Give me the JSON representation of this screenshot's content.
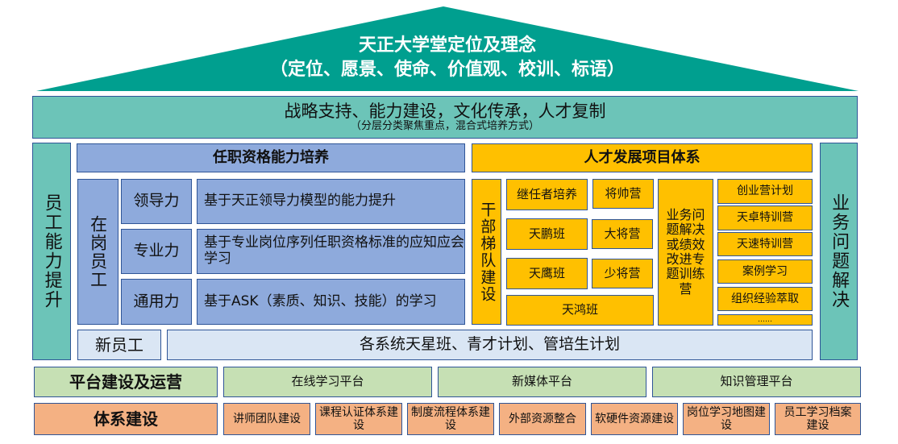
{
  "roof": {
    "title": "天正大学堂定位及理念",
    "subtitle": "（定位、愿景、使命、价值观、校训、标语）"
  },
  "band": {
    "title": "战略支持、能力建设，文化传承，人才复制",
    "subtitle": "（分层分类聚焦重点，混合式培养方式）"
  },
  "left_pillar": "员工能力提升",
  "right_pillar": "业务问题解决",
  "qualification": {
    "header": "任职资格能力培养",
    "onjob": "在岗员工",
    "rows": [
      {
        "label": "领导力",
        "desc": "基于天正领导力模型的能力提升"
      },
      {
        "label": "专业力",
        "desc": "基于专业岗位序列任职资格标准的应知应会学习"
      },
      {
        "label": "通用力",
        "desc": "基于ASK（素质、知识、技能）的学习"
      }
    ]
  },
  "new_staff": {
    "label": "新员工",
    "desc": "各系统天星班、青才计划、管培生计划"
  },
  "talent": {
    "header": "人才发展项目体系",
    "cadre": "干部梯队建设",
    "items": [
      "继任者培养",
      "将帅营",
      "天鹏班",
      "大将营",
      "天鹰班",
      "少将营",
      "天鸿班"
    ],
    "business": "业务问题解决或绩效改进专题训练营",
    "right": [
      "创业营计划",
      "天卓特训营",
      "天速特训营",
      "案例学习",
      "组织经验萃取",
      "……"
    ]
  },
  "platform": {
    "label": "平台建设及运营",
    "items": [
      "在线学习平台",
      "新媒体平台",
      "知识管理平台"
    ]
  },
  "system": {
    "label": "体系建设",
    "items": [
      "讲师团队建设",
      "课程认证体系建设",
      "制度流程体系建设",
      "外部资源整合",
      "软硬件资源建设",
      "岗位学习地图建设",
      "员工学习档案建设"
    ]
  },
  "colors": {
    "roof": "#009f8f",
    "band": "#6cc4b8",
    "blue": "#8eaadc",
    "orange": "#ffc000",
    "green": "#c6e0b4",
    "salmon": "#f4b183"
  }
}
